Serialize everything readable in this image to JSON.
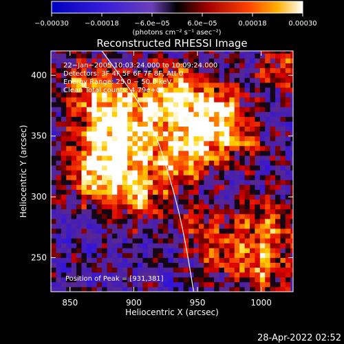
{
  "chart_data": {
    "type": "heatmap",
    "title": "Reconstructed RHESSI Image",
    "xlabel": "Heliocentric X (arcsec)",
    "ylabel": "Heliocentric Y (arcsec)",
    "xlim": [
      835,
      1025
    ],
    "ylim": [
      222,
      420
    ],
    "x_ticks": [
      {
        "value": 850,
        "label": "850"
      },
      {
        "value": 900,
        "label": "900"
      },
      {
        "value": 950,
        "label": "950"
      },
      {
        "value": 1000,
        "label": "1000"
      }
    ],
    "y_ticks": [
      {
        "value": 250,
        "label": "250"
      },
      {
        "value": 300,
        "label": "300"
      },
      {
        "value": 350,
        "label": "350"
      },
      {
        "value": 400,
        "label": "400"
      }
    ],
    "colorbar": {
      "range": [
        -0.0003,
        0.0003
      ],
      "unit_label": "(photons cm⁻² s⁻¹ asec⁻²)",
      "ticks": [
        {
          "value": -0.0003,
          "label": "−0.00030"
        },
        {
          "value": -0.00018,
          "label": "−0.00018"
        },
        {
          "value": -6e-05,
          "label": "−6.0e−05"
        },
        {
          "value": 6e-05,
          "label": "6.0e−05"
        },
        {
          "value": 0.00018,
          "label": "0.00018"
        },
        {
          "value": 0.0003,
          "label": "0.00030"
        }
      ]
    },
    "annotations": [
      "22−Jan−2005 10:03:24.000 to 10:09:24.000",
      "Detectors: 3F 4F 5F 6F 7F 8F, Att 0",
      "Energy Range: 25.0 − 50.0 keV",
      "Clean     Total counts: 4.79e+03"
    ],
    "peak_label": "Position of Peak = [931,381]",
    "peak": [
      931,
      381
    ],
    "sources": [
      {
        "x": 883,
        "y": 368,
        "amp": 1.0,
        "sigma": 20
      },
      {
        "x": 895,
        "y": 338,
        "amp": 0.95,
        "sigma": 24
      },
      {
        "x": 872,
        "y": 318,
        "amp": 0.9,
        "sigma": 16
      },
      {
        "x": 905,
        "y": 300,
        "amp": 0.75,
        "sigma": 14
      },
      {
        "x": 862,
        "y": 395,
        "amp": 0.6,
        "sigma": 14
      },
      {
        "x": 932,
        "y": 383,
        "amp": 1.2,
        "sigma": 17
      },
      {
        "x": 952,
        "y": 350,
        "amp": 1.0,
        "sigma": 18
      },
      {
        "x": 970,
        "y": 372,
        "amp": 0.8,
        "sigma": 15
      },
      {
        "x": 940,
        "y": 325,
        "amp": 0.55,
        "sigma": 14
      },
      {
        "x": 1015,
        "y": 405,
        "amp": 0.7,
        "sigma": 12
      },
      {
        "x": 985,
        "y": 345,
        "amp": 0.55,
        "sigma": 12
      },
      {
        "x": 1005,
        "y": 275,
        "amp": 0.8,
        "sigma": 18
      },
      {
        "x": 968,
        "y": 255,
        "amp": 0.65,
        "sigma": 15
      },
      {
        "x": 1000,
        "y": 238,
        "amp": 0.7,
        "sigma": 14
      },
      {
        "x": 950,
        "y": 280,
        "amp": 0.45,
        "sigma": 12
      }
    ],
    "limb_curve": [
      [
        875,
        420
      ],
      [
        903,
        380
      ],
      [
        918,
        350
      ],
      [
        927,
        320
      ],
      [
        935,
        290
      ],
      [
        941,
        260
      ],
      [
        947,
        222
      ]
    ],
    "grid": false
  },
  "footer": {
    "timestamp": "28-Apr-2022 02:52"
  },
  "colors": {
    "background": "#000000",
    "foreground": "#ffffff",
    "limb": "#ffffff"
  }
}
